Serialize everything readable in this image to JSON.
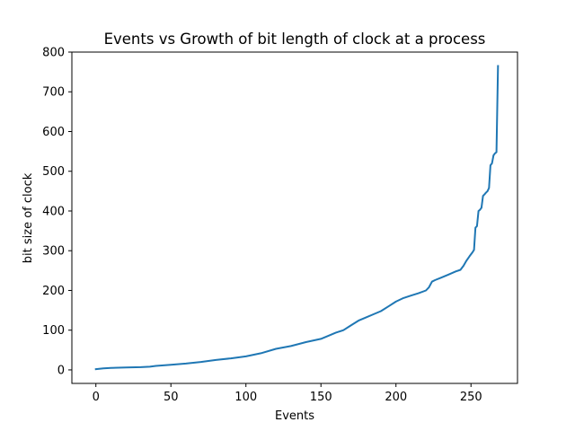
{
  "chart_data": {
    "type": "line",
    "title": "Events vs Growth of bit length of clock at a process",
    "xlabel": "Events",
    "ylabel": "bit size of clock",
    "xlim": [
      -16,
      281
    ],
    "ylim": [
      -34,
      800
    ],
    "xticks": [
      0,
      50,
      100,
      150,
      200,
      250
    ],
    "yticks": [
      0,
      100,
      200,
      300,
      400,
      500,
      600,
      700,
      800
    ],
    "grid": false,
    "legend": "none",
    "series": [
      {
        "color": "#1f77b4",
        "x": [
          0,
          5,
          10,
          20,
          30,
          36,
          40,
          50,
          60,
          70,
          80,
          90,
          100,
          110,
          120,
          130,
          140,
          150,
          155,
          160,
          165,
          170,
          175,
          180,
          185,
          190,
          195,
          200,
          205,
          210,
          215,
          220,
          222,
          224,
          226,
          230,
          235,
          240,
          243,
          245,
          247,
          249,
          251,
          252,
          253,
          254,
          255,
          256,
          257,
          258,
          259,
          260,
          261,
          262,
          263,
          264,
          265,
          266,
          267,
          268
        ],
        "y": [
          2,
          4,
          5,
          6,
          7,
          8,
          10,
          13,
          16,
          20,
          25,
          29,
          34,
          42,
          53,
          60,
          70,
          78,
          86,
          94,
          100,
          112,
          124,
          132,
          140,
          148,
          160,
          172,
          181,
          187,
          193,
          200,
          208,
          222,
          226,
          232,
          240,
          248,
          252,
          262,
          275,
          286,
          296,
          302,
          358,
          362,
          400,
          403,
          408,
          438,
          442,
          446,
          450,
          458,
          515,
          520,
          540,
          545,
          548,
          765
        ]
      }
    ]
  }
}
